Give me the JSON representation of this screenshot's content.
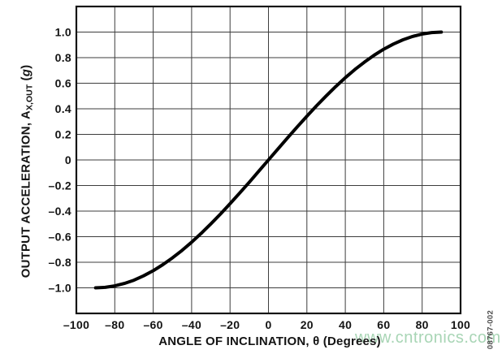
{
  "figure": {
    "watermark": "www.cntronics.com",
    "figure_number": "08767-002"
  },
  "chart_data": {
    "type": "line",
    "title": "",
    "xlabel": "ANGLE OF INCLINATION, θ (Degrees)",
    "ylabel": "OUTPUT ACCELERATION, AX,OUT (g)",
    "ylabel_parts": {
      "pre": "OUTPUT ACCELERATION, A",
      "sub": "X,OUT",
      "mid": " (",
      "unit_italic": "g",
      "end": ")"
    },
    "xlim": [
      -100,
      100
    ],
    "ylim": [
      -1.2,
      1.2
    ],
    "grid": true,
    "legend": false,
    "x_gridlines": [
      -100,
      -80,
      -60,
      -40,
      -20,
      0,
      20,
      40,
      60,
      80,
      100
    ],
    "y_gridlines": [
      -1.2,
      -1.0,
      -0.8,
      -0.6,
      -0.4,
      -0.2,
      0,
      0.2,
      0.4,
      0.6,
      0.8,
      1.0,
      1.2
    ],
    "x_ticks": [
      {
        "v": -100,
        "label": "–100"
      },
      {
        "v": -80,
        "label": "–80"
      },
      {
        "v": -60,
        "label": "–60"
      },
      {
        "v": -40,
        "label": "–40"
      },
      {
        "v": -20,
        "label": "–20"
      },
      {
        "v": 0,
        "label": "0"
      },
      {
        "v": 20,
        "label": "20"
      },
      {
        "v": 40,
        "label": "40"
      },
      {
        "v": 60,
        "label": "60"
      },
      {
        "v": 80,
        "label": "80"
      },
      {
        "v": 100,
        "label": "100"
      }
    ],
    "y_ticks": [
      {
        "v": 1.0,
        "label": "1.0"
      },
      {
        "v": 0.8,
        "label": "0.8"
      },
      {
        "v": 0.6,
        "label": "0.6"
      },
      {
        "v": 0.4,
        "label": "0.4"
      },
      {
        "v": 0.2,
        "label": "0.2"
      },
      {
        "v": 0,
        "label": "0"
      },
      {
        "v": -0.2,
        "label": "–0.2"
      },
      {
        "v": -0.4,
        "label": "–0.4"
      },
      {
        "v": -0.6,
        "label": "–0.6"
      },
      {
        "v": -0.8,
        "label": "–0.8"
      },
      {
        "v": -1.0,
        "label": "–1.0"
      }
    ],
    "series": [
      {
        "name": "AX,OUT",
        "points": [
          [
            -90,
            -1.0
          ],
          [
            -85,
            -0.996
          ],
          [
            -80,
            -0.985
          ],
          [
            -75,
            -0.966
          ],
          [
            -70,
            -0.94
          ],
          [
            -65,
            -0.906
          ],
          [
            -60,
            -0.866
          ],
          [
            -55,
            -0.819
          ],
          [
            -50,
            -0.766
          ],
          [
            -45,
            -0.707
          ],
          [
            -40,
            -0.643
          ],
          [
            -35,
            -0.574
          ],
          [
            -30,
            -0.5
          ],
          [
            -25,
            -0.423
          ],
          [
            -20,
            -0.342
          ],
          [
            -15,
            -0.259
          ],
          [
            -10,
            -0.174
          ],
          [
            -5,
            -0.087
          ],
          [
            0,
            0.0
          ],
          [
            5,
            0.087
          ],
          [
            10,
            0.174
          ],
          [
            15,
            0.259
          ],
          [
            20,
            0.342
          ],
          [
            25,
            0.423
          ],
          [
            30,
            0.5
          ],
          [
            35,
            0.574
          ],
          [
            40,
            0.643
          ],
          [
            45,
            0.707
          ],
          [
            50,
            0.766
          ],
          [
            55,
            0.819
          ],
          [
            60,
            0.866
          ],
          [
            65,
            0.906
          ],
          [
            70,
            0.94
          ],
          [
            75,
            0.966
          ],
          [
            80,
            0.985
          ],
          [
            85,
            0.996
          ],
          [
            90,
            1.0
          ]
        ]
      }
    ],
    "colors": {
      "curve": "#000000",
      "grid": "#3d3d3d",
      "frame": "#141414",
      "label": "#141414",
      "watermark": "#a8d5b5",
      "figure_number": "#4a4a4a"
    }
  }
}
